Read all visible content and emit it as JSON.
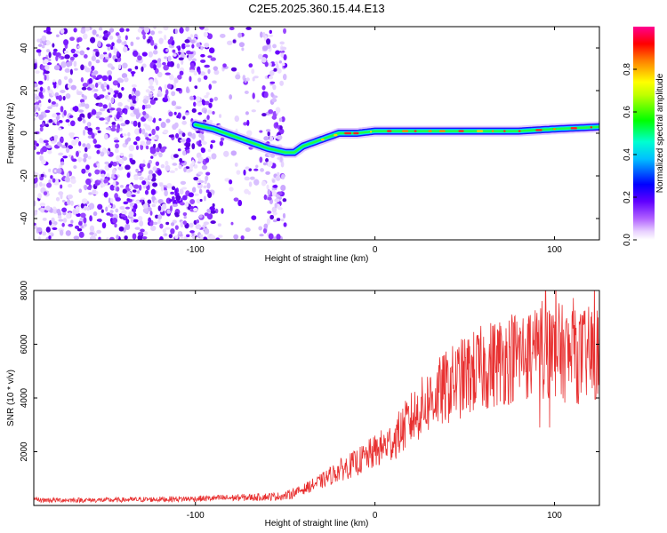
{
  "chart_data": [
    {
      "type": "heatmap",
      "title": "C2E5.2025.360.15.44.E13",
      "xlabel": "Height of straight line (km)",
      "ylabel": "Frequency (Hz)",
      "xlim": [
        -190,
        125
      ],
      "ylim": [
        -50,
        50
      ],
      "x_ticks": [
        -100,
        0,
        100
      ],
      "x_tick_labels": [
        "-100",
        "0",
        "100"
      ],
      "y_ticks": [
        -40,
        -20,
        0,
        20,
        40
      ],
      "y_tick_labels": [
        "-40",
        "-20",
        "0",
        "20",
        "40"
      ],
      "colorbar": {
        "label": "Normalized spectral amplitude",
        "range": [
          0,
          1
        ],
        "ticks": [
          0.0,
          0.2,
          0.4,
          0.6,
          0.8
        ],
        "tick_labels": [
          "0.0",
          "0.2",
          "0.4",
          "0.6",
          "0.8"
        ],
        "colors": [
          "#ffffff",
          "#d9b3ff",
          "#8000ff",
          "#0000ff",
          "#00ffff",
          "#00ff00",
          "#ffff00",
          "#ff8000",
          "#ff0000",
          "#ff00a0"
        ]
      },
      "ridge": {
        "x": [
          -100,
          -90,
          -80,
          -70,
          -60,
          -50,
          -45,
          -40,
          -30,
          -20,
          -10,
          0,
          20,
          40,
          60,
          80,
          100,
          125
        ],
        "y": [
          4,
          2,
          -1,
          -4,
          -7,
          -9,
          -9,
          -6,
          -3,
          0,
          0,
          1,
          1,
          1,
          1,
          1,
          2,
          3
        ]
      },
      "noise_region": {
        "x_start": -190,
        "x_end": -50
      }
    },
    {
      "type": "line",
      "xlabel": "Height of straight line (km)",
      "ylabel": "SNR (10 * v/v)",
      "xlim": [
        -190,
        125
      ],
      "ylim": [
        0,
        8000
      ],
      "x_ticks": [
        -100,
        0,
        100
      ],
      "x_tick_labels": [
        "-100",
        "0",
        "100"
      ],
      "y_ticks": [
        2000,
        4000,
        6000,
        8000
      ],
      "y_tick_labels": [
        "2000",
        "4000",
        "6000",
        "8000"
      ],
      "color": "#e83030",
      "envelope": {
        "x": [
          -190,
          -150,
          -100,
          -70,
          -50,
          -40,
          -30,
          -20,
          -10,
          0,
          10,
          20,
          30,
          40,
          50,
          60,
          70,
          80,
          90,
          100,
          110,
          125
        ],
        "y": [
          200,
          200,
          250,
          300,
          350,
          600,
          900,
          1300,
          1600,
          2000,
          2400,
          3200,
          3900,
          4400,
          4800,
          5100,
          5400,
          5600,
          5800,
          5800,
          5500,
          5700
        ]
      }
    }
  ]
}
